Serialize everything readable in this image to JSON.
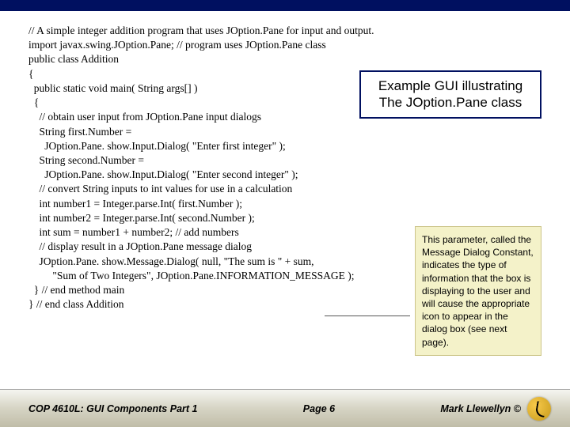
{
  "colors": {
    "top_bar": "#001060",
    "callout_border": "#001060",
    "note_bg": "#f4f2c9",
    "note_border": "#ccc58a",
    "footer_gradient_top": "#f5f5f0",
    "footer_gradient_mid": "#d6d4c4",
    "footer_gradient_bottom": "#c0bda8",
    "logo_light": "#f7c94a",
    "logo_dark": "#c79a1a"
  },
  "code": {
    "l1": "// A simple integer addition program that uses JOption.Pane for input and output.",
    "l2": "import javax.swing.JOption.Pane; // program uses JOption.Pane class",
    "l3": "",
    "l4": "public class Addition",
    "l5": "{",
    "l6": "  public static void main( String args[] )",
    "l7": "  {",
    "l8": "    // obtain user input from JOption.Pane input dialogs",
    "l9": "    String first.Number =",
    "l10": "      JOption.Pane. show.Input.Dialog( \"Enter first integer\" );",
    "l11": "    String second.Number =",
    "l12": "      JOption.Pane. show.Input.Dialog( \"Enter second integer\" );",
    "l13": "",
    "l14": "    // convert String inputs to int values for use in a calculation",
    "l15": "    int number1 = Integer.parse.Int( first.Number );",
    "l16": "    int number2 = Integer.parse.Int( second.Number );",
    "l17": "",
    "l18": "    int sum = number1 + number2; // add numbers",
    "l19": "",
    "l20": "    // display result in a JOption.Pane message dialog",
    "l21": "    JOption.Pane. show.Message.Dialog( null, \"The sum is \" + sum,",
    "l22": "         \"Sum of Two Integers\", JOption.Pane.INFORMATION_MESSAGE );",
    "l23": "  } // end method main",
    "l24": "} // end class Addition"
  },
  "callout": {
    "title_line1": "Example GUI illustrating",
    "title_line2": "The JOption.Pane class",
    "note": "This parameter, called the Message Dialog Constant, indicates the type of information that the box is displaying to the user and will cause the appropriate icon to appear in the dialog box (see next page)."
  },
  "footer": {
    "left": "COP 4610L: GUI Components Part 1",
    "center": "Page 6",
    "right": "Mark Llewellyn ©"
  }
}
